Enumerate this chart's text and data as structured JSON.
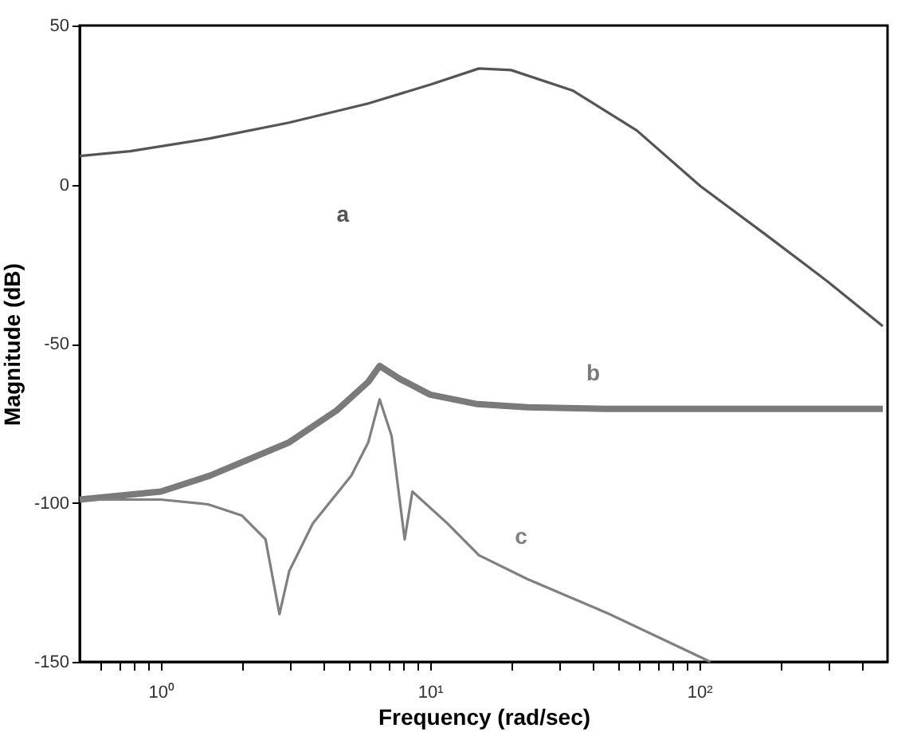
{
  "chart_data": {
    "type": "line",
    "xlabel": "Frequency (rad/sec)",
    "ylabel": "Magnitude (dB)",
    "log": "x",
    "xlim": [
      0.5,
      500
    ],
    "ylim": [
      -150,
      50
    ],
    "xticks": [
      {
        "value": 0.6,
        "label": null
      },
      {
        "value": 0.7,
        "label": null
      },
      {
        "value": 0.8,
        "label": null
      },
      {
        "value": 0.9,
        "label": null
      },
      {
        "value": 1,
        "label": "10⁰"
      },
      {
        "value": 2,
        "label": null
      },
      {
        "value": 3,
        "label": null
      },
      {
        "value": 4,
        "label": null
      },
      {
        "value": 5,
        "label": null
      },
      {
        "value": 6,
        "label": null
      },
      {
        "value": 7,
        "label": null
      },
      {
        "value": 8,
        "label": null
      },
      {
        "value": 9,
        "label": null
      },
      {
        "value": 10,
        "label": "10¹"
      },
      {
        "value": 20,
        "label": null
      },
      {
        "value": 30,
        "label": null
      },
      {
        "value": 40,
        "label": null
      },
      {
        "value": 50,
        "label": null
      },
      {
        "value": 60,
        "label": null
      },
      {
        "value": 70,
        "label": null
      },
      {
        "value": 80,
        "label": null
      },
      {
        "value": 90,
        "label": null
      },
      {
        "value": 100,
        "label": "10²"
      },
      {
        "value": 200,
        "label": null
      },
      {
        "value": 300,
        "label": null
      },
      {
        "value": 400,
        "label": null
      }
    ],
    "yticks": [
      -150,
      -100,
      -50,
      0,
      50
    ],
    "grid": false,
    "marker": "none",
    "line_style": "solid",
    "series": [
      {
        "name": "a",
        "color": "#555555",
        "x": [
          0.5,
          0.77,
          1.52,
          3.0,
          5.9,
          10.1,
          15.2,
          20,
          34,
          58.6,
          101,
          175,
          300,
          480
        ],
        "values": [
          9,
          10.5,
          14.5,
          19.5,
          25.5,
          31.5,
          36.5,
          36,
          29.5,
          17,
          -0.5,
          -15.5,
          -30.5,
          -44.5
        ]
      },
      {
        "name": "b",
        "color": "#7a7a7a",
        "x": [
          0.5,
          1,
          1.52,
          3.0,
          4.5,
          5.9,
          6.5,
          7.7,
          10,
          15,
          23,
          45,
          480
        ],
        "values": [
          -99,
          -96.5,
          -91.5,
          -81,
          -71,
          -62,
          -57,
          -61,
          -66,
          -69,
          -70,
          -70.5,
          -70.5
        ]
      },
      {
        "name": "c",
        "color": "#808080",
        "x": [
          0.5,
          1,
          1.5,
          2,
          2.45,
          2.76,
          3.0,
          3.67,
          5.1,
          5.9,
          6.5,
          7.2,
          8.05,
          8.6,
          11.6,
          15.2,
          23,
          45,
          110
        ],
        "values": [
          -99,
          -99,
          -100.5,
          -104,
          -111.5,
          -135,
          -121.5,
          -106.5,
          -91.5,
          -81,
          -67.5,
          -79,
          -111.5,
          -96.5,
          -106.5,
          -116.5,
          -124,
          -134.5,
          -150
        ]
      }
    ]
  }
}
